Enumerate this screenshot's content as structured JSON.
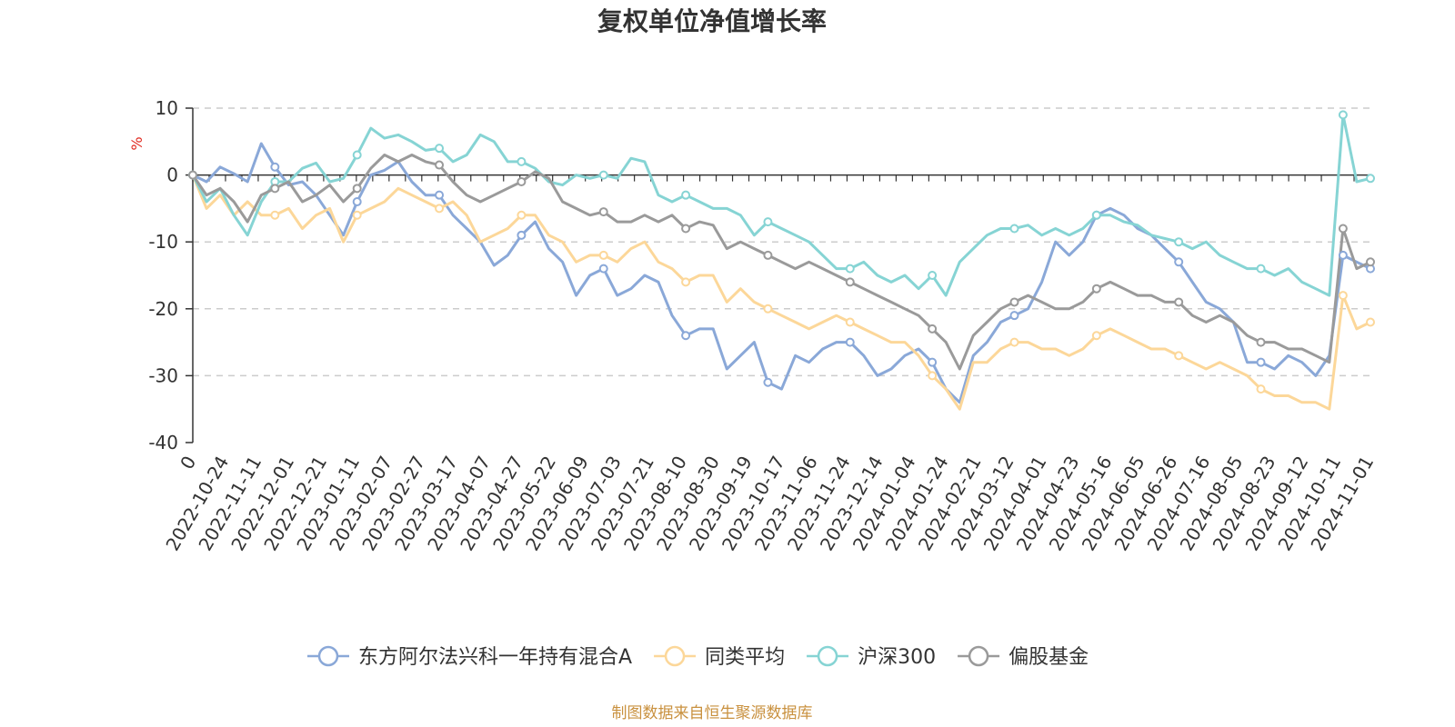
{
  "colors": {
    "fund": "#8aa8d8",
    "peer_avg": "#fcd799",
    "hs300": "#86d4d4",
    "equity_funds": "#9a9a9a",
    "grid": "#cccccc",
    "axis": "#333333"
  },
  "chart_data": {
    "type": "line",
    "title": "复权单位净值增长率",
    "ylabel": "%",
    "ylim": [
      -40,
      10
    ],
    "yticks": [
      10,
      0,
      -10,
      -20,
      -30,
      -40
    ],
    "grid": true,
    "legend_position": "bottom",
    "source": "制图数据来自恒生聚源数据库",
    "x_tick_labels": [
      "0",
      "2022-10-24",
      "2022-11-11",
      "2022-12-01",
      "2022-12-21",
      "2023-01-11",
      "2023-02-07",
      "2023-02-27",
      "2023-03-17",
      "2023-04-07",
      "2023-04-27",
      "2023-05-22",
      "2023-06-09",
      "2023-07-03",
      "2023-07-21",
      "2023-08-10",
      "2023-08-30",
      "2023-09-19",
      "2023-10-17",
      "2023-11-06",
      "2023-11-24",
      "2023-12-14",
      "2024-01-04",
      "2024-01-24",
      "2024-02-21",
      "2024-03-12",
      "2024-04-01",
      "2024-04-23",
      "2024-05-16",
      "2024-06-05",
      "2024-06-26",
      "2024-07-16",
      "2024-08-05",
      "2024-08-23",
      "2024-09-12",
      "2024-10-11",
      "2024-11-01"
    ],
    "series": [
      {
        "name": "东方阿尔法兴科一年持有混合A",
        "color_key": "fund",
        "values": [
          0,
          -1,
          1.2,
          0.2,
          -1,
          4.7,
          1.2,
          -1.5,
          -1,
          -3,
          -6,
          -9,
          -4,
          0,
          0.7,
          2,
          -1,
          -3,
          -3,
          -6,
          -8,
          -10,
          -13.5,
          -12,
          -9,
          -7,
          -11,
          -13,
          -18,
          -15,
          -14,
          -18,
          -17,
          -15,
          -16,
          -21,
          -24,
          -23,
          -23,
          -29,
          -27,
          -25,
          -31,
          -32,
          -27,
          -28,
          -26,
          -25,
          -25,
          -27,
          -30,
          -29,
          -27,
          -26,
          -28,
          -32,
          -34,
          -27,
          -25,
          -22,
          -21,
          -20,
          -16,
          -10,
          -12,
          -10,
          -6,
          -5,
          -6,
          -8,
          -9,
          -11,
          -13,
          -16,
          -19,
          -20,
          -22,
          -28,
          -28,
          -29,
          -27,
          -28,
          -30,
          -27,
          -12,
          -13,
          -14
        ]
      },
      {
        "name": "同类平均",
        "color_key": "peer_avg",
        "values": [
          0,
          -5,
          -3,
          -6,
          -4,
          -6,
          -6,
          -5,
          -8,
          -6,
          -5,
          -10,
          -6,
          -5,
          -4,
          -2,
          -3,
          -4,
          -5,
          -4,
          -6,
          -10,
          -9,
          -8,
          -6,
          -6,
          -9,
          -10,
          -13,
          -12,
          -12,
          -13,
          -11,
          -10,
          -13,
          -14,
          -16,
          -15,
          -15,
          -19,
          -17,
          -19,
          -20,
          -21,
          -22,
          -23,
          -22,
          -21,
          -22,
          -23,
          -24,
          -25,
          -25,
          -27,
          -30,
          -32,
          -35,
          -28,
          -28,
          -26,
          -25,
          -25,
          -26,
          -26,
          -27,
          -26,
          -24,
          -23,
          -24,
          -25,
          -26,
          -26,
          -27,
          -28,
          -29,
          -28,
          -29,
          -30,
          -32,
          -33,
          -33,
          -34,
          -34,
          -35,
          -18,
          -23,
          -22
        ]
      },
      {
        "name": "沪深300",
        "color_key": "hs300",
        "values": [
          0,
          -4,
          -2,
          -6,
          -9,
          -4,
          -1,
          -1,
          1,
          1.8,
          -1,
          -0.5,
          3,
          7,
          5.5,
          6,
          5,
          3.7,
          4,
          2,
          3,
          6,
          5,
          2,
          2,
          1,
          -1,
          -1.5,
          0,
          -0.5,
          0,
          -0.5,
          2.5,
          2,
          -3,
          -4,
          -3,
          -4,
          -5,
          -5,
          -6,
          -9,
          -7,
          -8,
          -9,
          -10,
          -12,
          -14,
          -14,
          -13,
          -15,
          -16,
          -15,
          -17,
          -15,
          -18,
          -13,
          -11,
          -9,
          -8,
          -8,
          -7.5,
          -9,
          -8,
          -9,
          -8,
          -6,
          -6,
          -7,
          -7.5,
          -9,
          -9.5,
          -10,
          -11,
          -10,
          -12,
          -13,
          -14,
          -14,
          -15,
          -14,
          -16,
          -17,
          -18,
          9,
          -1,
          -0.5
        ]
      },
      {
        "name": "偏股基金",
        "color_key": "equity_funds",
        "values": [
          0,
          -3,
          -2,
          -4,
          -7,
          -3,
          -2,
          -1,
          -4,
          -3,
          -1.5,
          -4,
          -2,
          1,
          3,
          2,
          3,
          2,
          1.5,
          -1,
          -3,
          -4,
          -3,
          -2,
          -1,
          0.5,
          -0.5,
          -4,
          -5,
          -6,
          -5.5,
          -7,
          -7,
          -6,
          -7,
          -6,
          -8,
          -7,
          -7.5,
          -11,
          -10,
          -11,
          -12,
          -13,
          -14,
          -13,
          -14,
          -15,
          -16,
          -17,
          -18,
          -19,
          -20,
          -21,
          -23,
          -25,
          -29,
          -24,
          -22,
          -20,
          -19,
          -18,
          -19,
          -20,
          -20,
          -19,
          -17,
          -16,
          -17,
          -18,
          -18,
          -19,
          -19,
          -21,
          -22,
          -21,
          -22,
          -24,
          -25,
          -25,
          -26,
          -26,
          -27,
          -28,
          -8,
          -14,
          -13
        ]
      }
    ]
  }
}
